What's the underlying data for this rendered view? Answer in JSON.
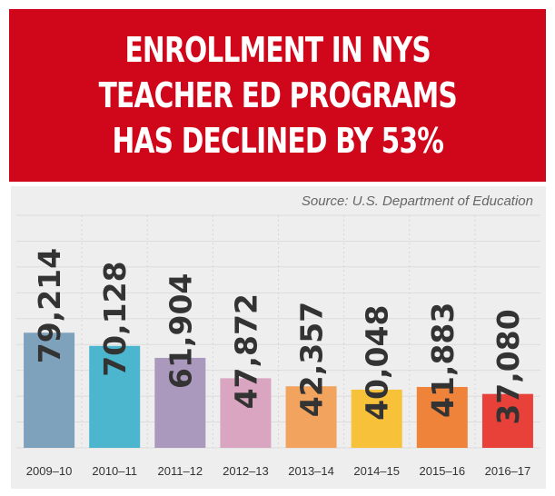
{
  "banner": {
    "lines": [
      "ENROLLMENT IN NYS",
      "TEACHER ED PROGRAMS",
      "HAS DECLINED BY 53%"
    ],
    "background": "#d0061b"
  },
  "source": "Source: U.S. Department of Education",
  "chart_data": {
    "type": "bar",
    "title": "ENROLLMENT IN NYS TEACHER ED PROGRAMS HAS DECLINED BY 53%",
    "categories": [
      "2009–10",
      "2010–11",
      "2011–12",
      "2012–13",
      "2013–14",
      "2014–15",
      "2015–16",
      "2016–17"
    ],
    "values": [
      79214,
      70128,
      61904,
      47872,
      42357,
      40048,
      41883,
      37080
    ],
    "value_labels": [
      "79,214",
      "70,128",
      "61,904",
      "47,872",
      "42,357",
      "40,048",
      "41,883",
      "37,080"
    ],
    "colors": [
      "#7ea1bc",
      "#4cb6ce",
      "#ab98bd",
      "#d9a5c0",
      "#f2a35e",
      "#f8c13a",
      "#f0833a",
      "#e8413a"
    ],
    "ylim": [
      0,
      160000
    ],
    "grid": true,
    "xlabel": "",
    "ylabel": ""
  }
}
